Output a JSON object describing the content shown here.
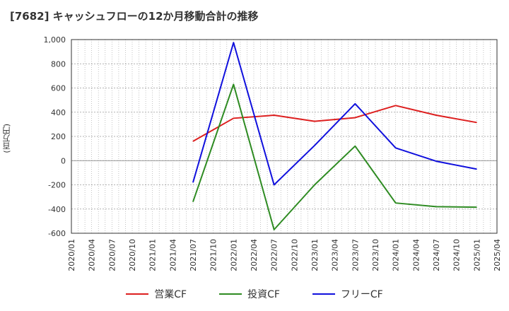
{
  "chart_data": {
    "type": "line",
    "title": "[7682]  キャッシュフローの12か月移動合計の推移",
    "ylabel": "(百万円)",
    "xlabel": "",
    "ylim": [
      -600,
      1000
    ],
    "yticks": [
      -600,
      -400,
      -200,
      0,
      200,
      400,
      600,
      800,
      1000
    ],
    "ytick_labels": [
      "-600",
      "-400",
      "-200",
      "0",
      "200",
      "400",
      "600",
      "800",
      "1,000"
    ],
    "categories": [
      "2020/01",
      "2020/04",
      "2020/07",
      "2020/10",
      "2021/01",
      "2021/04",
      "2021/07",
      "2021/10",
      "2022/01",
      "2022/04",
      "2022/07",
      "2022/10",
      "2023/01",
      "2023/04",
      "2023/07",
      "2023/10",
      "2024/01",
      "2024/04",
      "2024/07",
      "2024/10",
      "2025/01",
      "2025/04"
    ],
    "grid": true,
    "legend_position": "bottom",
    "series": [
      {
        "name": "営業CF",
        "color": "#dd1f1f",
        "points": [
          [
            "2021/07",
            160
          ],
          [
            "2022/01",
            350
          ],
          [
            "2022/07",
            375
          ],
          [
            "2023/01",
            325
          ],
          [
            "2023/07",
            355
          ],
          [
            "2024/01",
            455
          ],
          [
            "2024/07",
            375
          ],
          [
            "2025/01",
            315
          ]
        ]
      },
      {
        "name": "投資CF",
        "color": "#2e8b22",
        "points": [
          [
            "2021/07",
            -340
          ],
          [
            "2022/01",
            630
          ],
          [
            "2022/07",
            -570
          ],
          [
            "2023/01",
            -200
          ],
          [
            "2023/07",
            120
          ],
          [
            "2024/01",
            -350
          ],
          [
            "2024/07",
            -380
          ],
          [
            "2025/01",
            -385
          ]
        ]
      },
      {
        "name": "フリーCF",
        "color": "#1010dd",
        "points": [
          [
            "2021/07",
            -180
          ],
          [
            "2022/01",
            975
          ],
          [
            "2022/07",
            -200
          ],
          [
            "2023/01",
            125
          ],
          [
            "2023/07",
            470
          ],
          [
            "2024/01",
            105
          ],
          [
            "2024/07",
            -5
          ],
          [
            "2025/01",
            -70
          ]
        ]
      }
    ]
  }
}
